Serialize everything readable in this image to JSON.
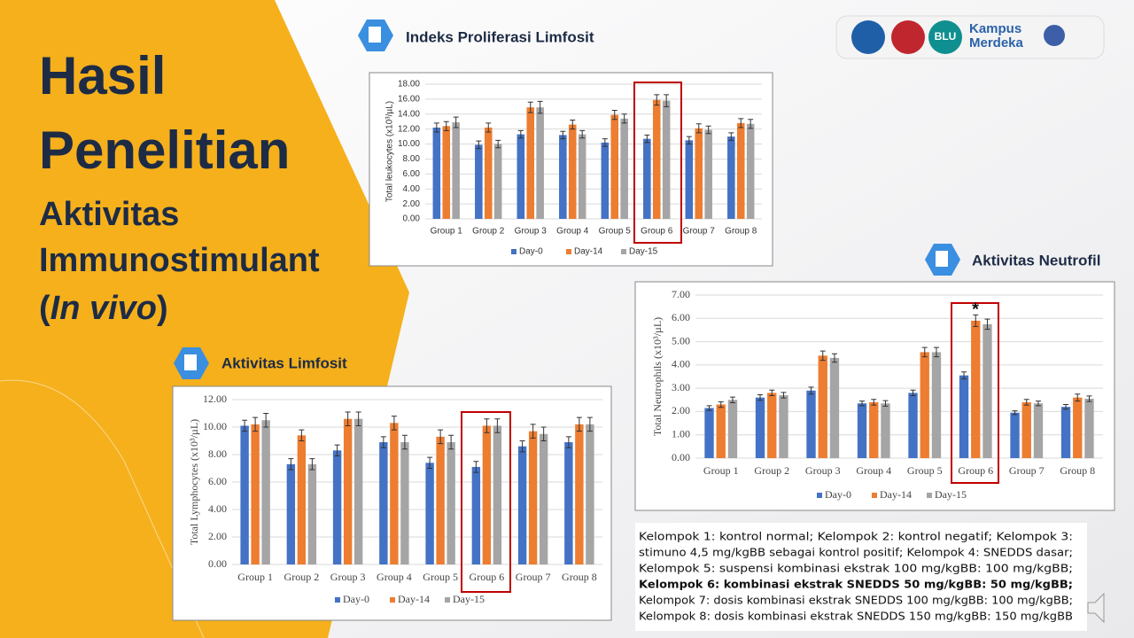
{
  "title": [
    "Hasil",
    "Penelitian"
  ],
  "subtitle": [
    "Aktivitas",
    "Immunostimulant"
  ],
  "in_vivo": {
    "open": "(",
    "text": "In vivo",
    "close": ")"
  },
  "sections": [
    "Indeks Proliferasi Limfosit",
    "Aktivitas Neutrofil",
    "Aktivitas Limfosit"
  ],
  "logos": {
    "blu": "BLU",
    "kampus": "Kampus",
    "merdeka": "Merdeka"
  },
  "notes": [
    "Kelompok 1: kontrol normal; Kelompok 2: kontrol negatif; Kelompok 3:",
    "stimuno 4,5 mg/kgBB sebagai kontrol positif; Kelompok 4: SNEDDS dasar;",
    "Kelompok 5: suspensi kombinasi ekstrak 100 mg/kgBB: 100 mg/kgBB;",
    "Kelompok 6: kombinasi ekstrak SNEDDS 50 mg/kgBB: 50 mg/kgBB;",
    "Kelompok 7: dosis kombinasi ekstrak SNEDDS 100 mg/kgBB: 100 mg/kgBB;",
    "Kelompok 8: dosis kombinasi ekstrak SNEDDS 150 mg/kgBB: 150 mg/kgBB"
  ],
  "chart_data": [
    {
      "type": "bar",
      "y_label": "Total leukocytes (x10³/µL)",
      "categories": [
        "Group 1",
        "Group 2",
        "Group 3",
        "Group 4",
        "Group 5",
        "Group 6",
        "Group 7",
        "Group 8"
      ],
      "series": [
        {
          "name": "Day-0",
          "color": "#4472c4",
          "values": [
            12.2,
            9.9,
            11.3,
            11.2,
            10.2,
            10.7,
            10.5,
            11.0
          ],
          "errors": [
            0.6,
            0.5,
            0.5,
            0.5,
            0.5,
            0.5,
            0.5,
            0.5
          ]
        },
        {
          "name": "Day-14",
          "color": "#ed7d31",
          "values": [
            12.4,
            12.2,
            14.9,
            12.6,
            13.9,
            15.9,
            12.1,
            12.8
          ],
          "errors": [
            0.6,
            0.6,
            0.7,
            0.6,
            0.6,
            0.7,
            0.6,
            0.6
          ]
        },
        {
          "name": "Day-15",
          "color": "#a5a5a5",
          "values": [
            12.9,
            10.0,
            14.9,
            11.3,
            13.4,
            15.8,
            11.9,
            12.7
          ],
          "errors": [
            0.7,
            0.5,
            0.8,
            0.5,
            0.6,
            0.8,
            0.5,
            0.6
          ]
        }
      ],
      "ylim": [
        0,
        18
      ],
      "yticks": [
        {
          "value": 0,
          "label": "0.00"
        },
        {
          "value": 2,
          "label": "2.00"
        },
        {
          "value": 4,
          "label": "4.00"
        },
        {
          "value": 6,
          "label": "6.00"
        },
        {
          "value": 8,
          "label": "8.00"
        },
        {
          "value": 10,
          "label": "10.00"
        },
        {
          "value": 12,
          "label": "12.00"
        },
        {
          "value": 14,
          "label": "14.00"
        },
        {
          "value": 16,
          "label": "16.00"
        },
        {
          "value": 18,
          "label": "18.00"
        }
      ],
      "grid": true
    },
    {
      "type": "bar",
      "y_label": "Total Neutrophils (x10³/µL)",
      "annotation": "*",
      "categories": [
        "Group 1",
        "Group 2",
        "Group 3",
        "Group 4",
        "Group 5",
        "Group 6",
        "Group 7",
        "Group 8"
      ],
      "series": [
        {
          "name": "Day-0",
          "color": "#4472c4",
          "values": [
            2.15,
            2.6,
            2.9,
            2.35,
            2.8,
            3.55,
            1.95,
            2.2
          ],
          "errors": [
            0.1,
            0.12,
            0.15,
            0.1,
            0.12,
            0.15,
            0.08,
            0.1
          ]
        },
        {
          "name": "Day-14",
          "color": "#ed7d31",
          "values": [
            2.3,
            2.8,
            4.4,
            2.4,
            4.55,
            5.9,
            2.4,
            2.6
          ],
          "errors": [
            0.12,
            0.12,
            0.2,
            0.12,
            0.2,
            0.25,
            0.12,
            0.15
          ]
        },
        {
          "name": "Day-15",
          "color": "#a5a5a5",
          "values": [
            2.5,
            2.7,
            4.3,
            2.35,
            4.55,
            5.75,
            2.35,
            2.55
          ],
          "errors": [
            0.12,
            0.12,
            0.18,
            0.12,
            0.2,
            0.22,
            0.1,
            0.12
          ]
        }
      ],
      "ylim": [
        0,
        7
      ],
      "yticks": [
        {
          "value": 0,
          "label": "0.00"
        },
        {
          "value": 1,
          "label": "1.00"
        },
        {
          "value": 2,
          "label": "2.00"
        },
        {
          "value": 3,
          "label": "3.00"
        },
        {
          "value": 4,
          "label": "4.00"
        },
        {
          "value": 5,
          "label": "5.00"
        },
        {
          "value": 6,
          "label": "6.00"
        },
        {
          "value": 7,
          "label": "7.00"
        }
      ],
      "grid": true
    },
    {
      "type": "bar",
      "y_label": "Total Lymphocytes (x10³/µL)",
      "categories": [
        "Group 1",
        "Group 2",
        "Group 3",
        "Group 4",
        "Group 5",
        "Group 6",
        "Group 7",
        "Group 8"
      ],
      "series": [
        {
          "name": "Day-0",
          "color": "#4472c4",
          "values": [
            10.1,
            7.3,
            8.3,
            8.9,
            7.4,
            7.1,
            8.6,
            8.9
          ],
          "errors": [
            0.4,
            0.4,
            0.4,
            0.4,
            0.4,
            0.4,
            0.4,
            0.4
          ]
        },
        {
          "name": "Day-14",
          "color": "#ed7d31",
          "values": [
            10.2,
            9.4,
            10.6,
            10.3,
            9.3,
            10.1,
            9.7,
            10.2
          ],
          "errors": [
            0.5,
            0.4,
            0.5,
            0.5,
            0.5,
            0.5,
            0.5,
            0.5
          ]
        },
        {
          "name": "Day-15",
          "color": "#a5a5a5",
          "values": [
            10.5,
            7.3,
            10.6,
            8.9,
            8.9,
            10.1,
            9.5,
            10.2
          ],
          "errors": [
            0.5,
            0.4,
            0.5,
            0.5,
            0.5,
            0.5,
            0.5,
            0.5
          ]
        }
      ],
      "ylim": [
        0,
        12
      ],
      "yticks": [
        {
          "value": 0,
          "label": "0.00"
        },
        {
          "value": 2,
          "label": "2.00"
        },
        {
          "value": 4,
          "label": "4.00"
        },
        {
          "value": 6,
          "label": "6.00"
        },
        {
          "value": 8,
          "label": "8.00"
        },
        {
          "value": 10,
          "label": "10.00"
        },
        {
          "value": 12,
          "label": "12.00"
        }
      ],
      "grid": true
    }
  ]
}
